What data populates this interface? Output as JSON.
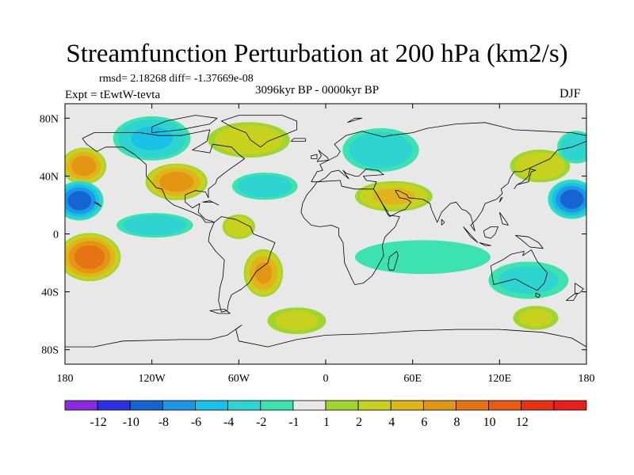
{
  "chart_data": {
    "type": "contour-map",
    "title": "Streamfunction Perturbation at 200 hPa (km2/s)",
    "stats_text": "rmsd= 2.18268 diff= -1.37669e-08",
    "experiment_text": "Expt = tEwtW-tevta",
    "period_text": "3096kyr BP - 0000kyr BP",
    "season_text": "DJF",
    "units": "km2/s",
    "x_axis": {
      "range": [
        -180,
        180
      ],
      "ticks": [
        {
          "value": -180,
          "label": "180"
        },
        {
          "value": -120,
          "label": "120W"
        },
        {
          "value": -60,
          "label": "60W"
        },
        {
          "value": 0,
          "label": "0"
        },
        {
          "value": 60,
          "label": "60E"
        },
        {
          "value": 120,
          "label": "120E"
        },
        {
          "value": 180,
          "label": "180"
        }
      ]
    },
    "y_axis": {
      "range": [
        -90,
        90
      ],
      "ticks": [
        {
          "value": 80,
          "label": "80N"
        },
        {
          "value": 40,
          "label": "40N"
        },
        {
          "value": 0,
          "label": "0"
        },
        {
          "value": -40,
          "label": "40S"
        },
        {
          "value": -80,
          "label": "80S"
        }
      ]
    },
    "colorbar": {
      "colors": [
        "#8a2be2",
        "#2e2ee6",
        "#1464d2",
        "#1e96e6",
        "#18c1e6",
        "#2ed4cf",
        "#3ce3b0",
        "#e8e8e8",
        "#9ed62f",
        "#c8d21e",
        "#e0b41a",
        "#e39614",
        "#e67314",
        "#e65a14",
        "#e63214",
        "#e61e1e"
      ],
      "labels": [
        "-12",
        "-10",
        "-8",
        "-6",
        "-4",
        "-2",
        "-1",
        "1",
        "2",
        "4",
        "6",
        "8",
        "10",
        "12"
      ]
    },
    "anomalies": [
      {
        "lon": -167,
        "lat": 47,
        "value": 7,
        "rlon": 16,
        "rlat": 13
      },
      {
        "lon": -170,
        "lat": 23,
        "value": -9,
        "rlon": 17,
        "rlat": 14
      },
      {
        "lon": -163,
        "lat": -16,
        "value": 9,
        "rlon": 22,
        "rlat": 17
      },
      {
        "lon": -120,
        "lat": 66,
        "value": -4,
        "rlon": 28,
        "rlat": 16
      },
      {
        "lon": -103,
        "lat": 36,
        "value": 7,
        "rlon": 22,
        "rlat": 13
      },
      {
        "lon": -118,
        "lat": 6,
        "value": -3,
        "rlon": 28,
        "rlat": 9
      },
      {
        "lon": -42,
        "lat": 33,
        "value": -3,
        "rlon": 24,
        "rlat": 10
      },
      {
        "lon": -53,
        "lat": 65,
        "value": 3,
        "rlon": 30,
        "rlat": 13
      },
      {
        "lon": -43,
        "lat": -27,
        "value": 6,
        "rlon": 14,
        "rlat": 17
      },
      {
        "lon": -60,
        "lat": 5,
        "value": 3,
        "rlon": 12,
        "rlat": 9
      },
      {
        "lon": -20,
        "lat": -60,
        "value": 2,
        "rlon": 22,
        "rlat": 10
      },
      {
        "lon": 38,
        "lat": 58,
        "value": -3,
        "rlon": 28,
        "rlat": 16
      },
      {
        "lon": 47,
        "lat": 26,
        "value": 4,
        "rlon": 28,
        "rlat": 11
      },
      {
        "lon": 67,
        "lat": -16,
        "value": -1.5,
        "rlon": 52,
        "rlat": 13
      },
      {
        "lon": 170,
        "lat": 24,
        "value": -9,
        "rlon": 17,
        "rlat": 14
      },
      {
        "lon": 148,
        "lat": 47,
        "value": 3,
        "rlon": 22,
        "rlat": 12
      },
      {
        "lon": 173,
        "lat": 60,
        "value": -3,
        "rlon": 14,
        "rlat": 12
      },
      {
        "lon": 140,
        "lat": -32,
        "value": -2,
        "rlon": 30,
        "rlat": 14
      },
      {
        "lon": 145,
        "lat": -58,
        "value": 2,
        "rlon": 17,
        "rlat": 9
      }
    ]
  }
}
